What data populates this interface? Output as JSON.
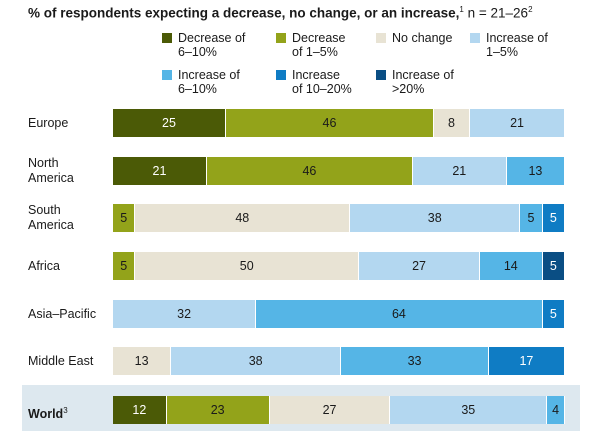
{
  "title": {
    "main": "% of respondents expecting a decrease, no change, or an increase,",
    "footnote": "1",
    "subtitle": "n = 21–26",
    "subtitle_footnote": "2"
  },
  "chart_data": {
    "type": "bar",
    "orientation": "horizontal",
    "stacked": true,
    "xlim": [
      0,
      100
    ],
    "grid": false,
    "legend_placement": "top",
    "series": [
      {
        "name": "Decrease of\n6–10%",
        "color": "#4b5a06"
      },
      {
        "name": "Decrease\nof 1–5%",
        "color": "#93a31a"
      },
      {
        "name": "No change",
        "color": "#e8e3d4"
      },
      {
        "name": "Increase of\n1–5%",
        "color": "#b3d7f0"
      },
      {
        "name": "Increase of\n6–10%",
        "color": "#55b5e6"
      },
      {
        "name": "Increase\nof 10–20%",
        "color": "#0f7cc4"
      },
      {
        "name": "Increase of\n>20%",
        "color": "#0a4e84"
      }
    ],
    "rows": [
      {
        "label": "Europe",
        "footnote": "",
        "values": [
          25,
          46,
          8,
          21,
          0,
          0,
          0
        ]
      },
      {
        "label": "North\nAmerica",
        "footnote": "",
        "values": [
          21,
          46,
          0,
          21,
          13,
          0,
          0
        ]
      },
      {
        "label": "South\nAmerica",
        "footnote": "",
        "values": [
          0,
          5,
          48,
          38,
          5,
          5,
          0
        ]
      },
      {
        "label": "Africa",
        "footnote": "",
        "values": [
          0,
          5,
          50,
          27,
          14,
          0,
          5
        ]
      },
      {
        "label": "Asia–Pacific",
        "footnote": "",
        "values": [
          0,
          0,
          0,
          32,
          64,
          5,
          0
        ]
      },
      {
        "label": "Middle East",
        "footnote": "",
        "values": [
          0,
          0,
          13,
          38,
          33,
          17,
          0
        ]
      },
      {
        "label": "World",
        "footnote": "3",
        "values": [
          12,
          23,
          27,
          35,
          4,
          0,
          0
        ]
      }
    ]
  }
}
